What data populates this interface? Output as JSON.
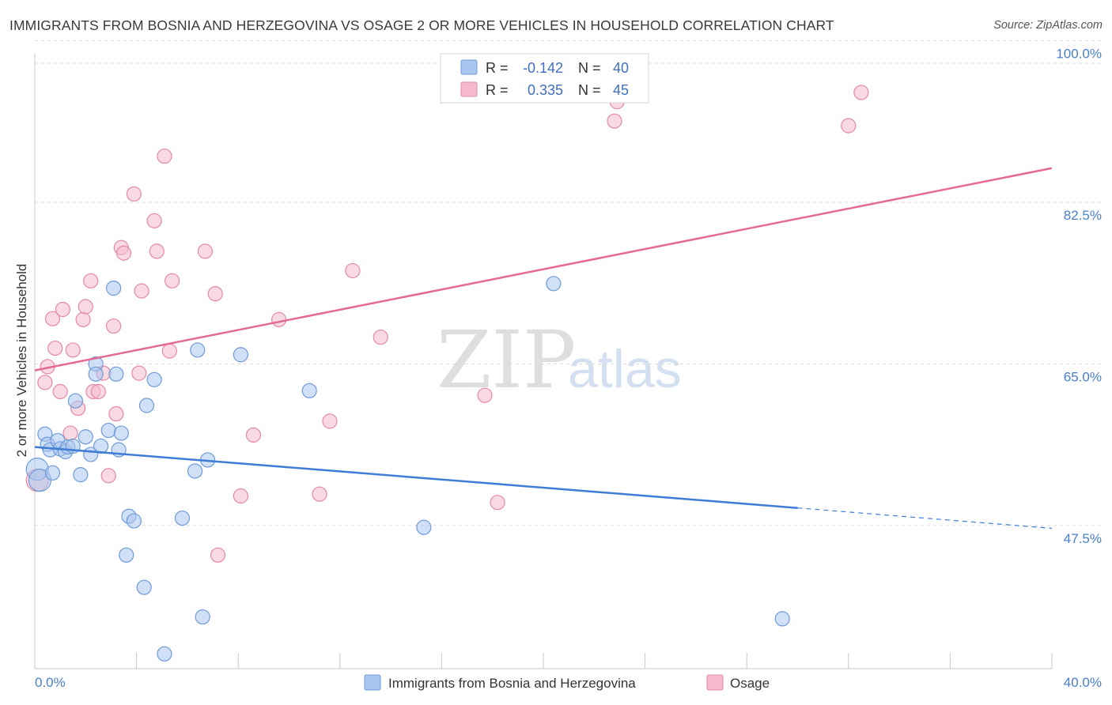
{
  "title": "IMMIGRANTS FROM BOSNIA AND HERZEGOVINA VS OSAGE 2 OR MORE VEHICLES IN HOUSEHOLD CORRELATION CHART",
  "source": "Source: ZipAtlas.com",
  "watermark": {
    "zip": "ZIP",
    "atlas": "atlas"
  },
  "colors": {
    "blue": "#3f7dd6",
    "blue_fill": "#a9c6ee",
    "pink": "#e26a95",
    "pink_fill": "#f4b9cb",
    "tick": "#4a7fcb"
  },
  "stats": {
    "blue": {
      "r_label": "R =",
      "r_value": "-0.142",
      "n_label": "N =",
      "n_value": "40"
    },
    "pink": {
      "r_label": "R =",
      "r_value": "0.335",
      "n_label": "N =",
      "n_value": "45"
    }
  },
  "chart_data": {
    "type": "scatter",
    "title": "IMMIGRANTS FROM BOSNIA AND HERZEGOVINA VS OSAGE 2 OR MORE VEHICLES IN HOUSEHOLD CORRELATION CHART",
    "xlabel": "",
    "ylabel": "2 or more Vehicles in Household",
    "xlim": [
      0,
      40
    ],
    "ylim": [
      32,
      101.5
    ],
    "x_tick_labels": [
      "0.0%",
      "40.0%"
    ],
    "y_ticks": [
      100,
      82.5,
      65,
      47.5
    ],
    "y_tick_labels": [
      "100.0%",
      "82.5%",
      "65.0%",
      "47.5%"
    ],
    "legend": [
      "Immigrants from Bosnia and Herzegovina",
      "Osage"
    ],
    "series": [
      {
        "name": "Immigrants from Bosnia and Herzegovina",
        "color": "#3f7dd6",
        "trend": {
          "x": [
            0,
            30
          ],
          "y": [
            56.0,
            49.4
          ],
          "dashed_to": [
            40,
            47.2
          ]
        },
        "points": [
          [
            0.1,
            53.6
          ],
          [
            0.2,
            52.4
          ],
          [
            0.4,
            57.4
          ],
          [
            0.5,
            56.3
          ],
          [
            0.6,
            55.7
          ],
          [
            0.7,
            53.2
          ],
          [
            0.9,
            56.7
          ],
          [
            1.0,
            55.8
          ],
          [
            1.2,
            55.5
          ],
          [
            1.3,
            56.0
          ],
          [
            1.5,
            56.1
          ],
          [
            1.6,
            61.0
          ],
          [
            1.8,
            53.0
          ],
          [
            2.0,
            57.1
          ],
          [
            2.2,
            55.2
          ],
          [
            2.4,
            65.0
          ],
          [
            2.4,
            63.9
          ],
          [
            2.6,
            56.1
          ],
          [
            2.9,
            57.8
          ],
          [
            3.1,
            73.2
          ],
          [
            3.2,
            63.9
          ],
          [
            3.3,
            55.7
          ],
          [
            3.4,
            57.5
          ],
          [
            3.6,
            44.3
          ],
          [
            3.7,
            48.5
          ],
          [
            3.9,
            48.0
          ],
          [
            4.3,
            40.8
          ],
          [
            4.4,
            60.5
          ],
          [
            4.7,
            63.3
          ],
          [
            5.1,
            33.6
          ],
          [
            5.8,
            48.3
          ],
          [
            6.3,
            53.4
          ],
          [
            6.6,
            37.6
          ],
          [
            6.8,
            54.6
          ],
          [
            6.4,
            66.5
          ],
          [
            8.1,
            66.0
          ],
          [
            10.8,
            62.1
          ],
          [
            15.3,
            47.3
          ],
          [
            20.4,
            73.7
          ],
          [
            29.4,
            37.4
          ]
        ]
      },
      {
        "name": "Osage",
        "color": "#e26a95",
        "trend": {
          "x": [
            0,
            40
          ],
          "y": [
            64.3,
            86.2
          ]
        },
        "points": [
          [
            0.1,
            52.4
          ],
          [
            0.4,
            63.0
          ],
          [
            0.5,
            64.7
          ],
          [
            0.7,
            69.9
          ],
          [
            0.8,
            66.7
          ],
          [
            1.0,
            62.0
          ],
          [
            1.1,
            70.9
          ],
          [
            1.4,
            57.5
          ],
          [
            1.5,
            66.5
          ],
          [
            1.7,
            60.2
          ],
          [
            1.9,
            69.8
          ],
          [
            2.0,
            71.2
          ],
          [
            2.2,
            74.0
          ],
          [
            2.3,
            62.0
          ],
          [
            2.5,
            62.0
          ],
          [
            2.7,
            64.0
          ],
          [
            2.9,
            52.9
          ],
          [
            3.1,
            69.1
          ],
          [
            3.2,
            59.6
          ],
          [
            3.4,
            77.6
          ],
          [
            3.5,
            77.0
          ],
          [
            3.9,
            83.4
          ],
          [
            4.1,
            64.0
          ],
          [
            4.2,
            72.9
          ],
          [
            4.7,
            80.5
          ],
          [
            4.8,
            77.2
          ],
          [
            5.1,
            87.5
          ],
          [
            5.3,
            66.4
          ],
          [
            5.4,
            74.0
          ],
          [
            6.7,
            77.2
          ],
          [
            7.1,
            72.6
          ],
          [
            7.2,
            44.3
          ],
          [
            8.1,
            50.7
          ],
          [
            8.6,
            57.3
          ],
          [
            9.6,
            69.8
          ],
          [
            11.2,
            50.9
          ],
          [
            11.6,
            58.8
          ],
          [
            12.5,
            75.1
          ],
          [
            13.6,
            67.9
          ],
          [
            17.7,
            61.6
          ],
          [
            18.2,
            50.0
          ],
          [
            22.8,
            91.3
          ],
          [
            22.9,
            93.4
          ],
          [
            32.0,
            90.8
          ],
          [
            32.5,
            94.4
          ]
        ]
      }
    ]
  }
}
